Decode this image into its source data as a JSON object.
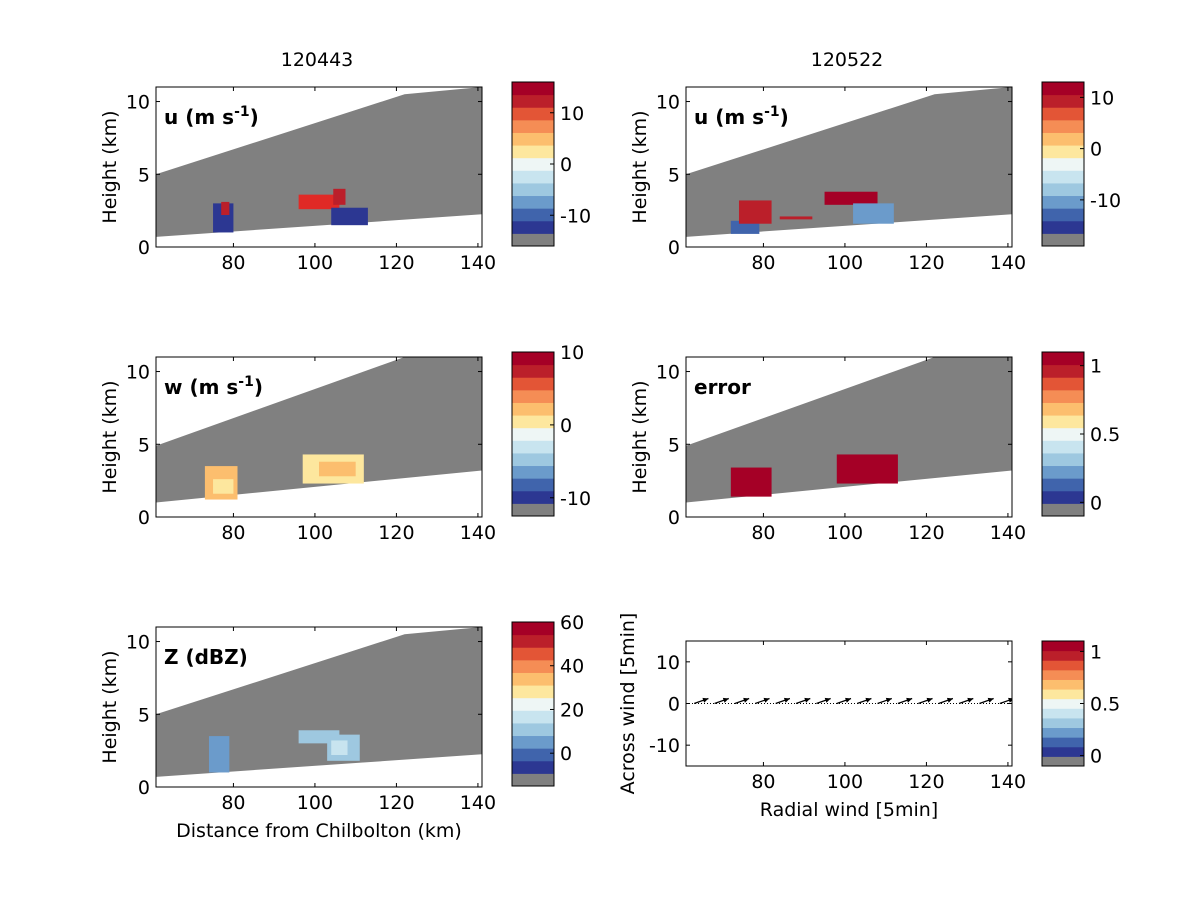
{
  "figure": {
    "column_titles": [
      "120443",
      "120522"
    ]
  },
  "colors": {
    "palette": [
      "#808080",
      "#2c3792",
      "#4064ac",
      "#6b9bcb",
      "#9ec8e0",
      "#c8e4ef",
      "#eef6f5",
      "#fde79e",
      "#fcbe6e",
      "#f58d55",
      "#e35536",
      "#bb1f2a",
      "#a50026"
    ],
    "missing_fill": "#808080",
    "frame": "#000000"
  },
  "chart_data": [
    {
      "type": "heatmap",
      "id": "u-120443",
      "column_title": "120443",
      "ylabel": "Height (km)",
      "xlabel": "",
      "panel_label": {
        "main": "u (m s",
        "sup": "-1",
        "close": ")"
      },
      "xlim": [
        61,
        141
      ],
      "ylim": [
        0,
        11
      ],
      "xticks": [
        80,
        100,
        120,
        140
      ],
      "yticks": [
        0,
        5,
        10
      ],
      "colorbar": {
        "ticks": [
          10,
          0,
          -10
        ],
        "vmin": -16,
        "vmax": 16
      },
      "coverage": {
        "lower": [
          [
            61,
            0.7
          ],
          [
            141,
            2.25
          ]
        ],
        "upper": [
          [
            61,
            5.0
          ],
          [
            122,
            10.5
          ]
        ]
      },
      "features": [
        {
          "x": [
            75,
            80
          ],
          "y": [
            1.0,
            3.0
          ],
          "color": "#2c3792"
        },
        {
          "x": [
            77,
            79
          ],
          "y": [
            2.2,
            3.1
          ],
          "color": "#bb1f2a"
        },
        {
          "x": [
            96,
            106
          ],
          "y": [
            2.6,
            3.6
          ],
          "color": "#e02a26"
        },
        {
          "x": [
            104.5,
            107.5
          ],
          "y": [
            2.9,
            4.0
          ],
          "color": "#bb1f2a"
        },
        {
          "x": [
            104,
            113
          ],
          "y": [
            1.5,
            2.7
          ],
          "color": "#2c3792"
        }
      ]
    },
    {
      "type": "heatmap",
      "id": "u-120522",
      "column_title": "120522",
      "ylabel": "Height (km)",
      "xlabel": "",
      "panel_label": {
        "main": "u (m s",
        "sup": "-1",
        "close": ")"
      },
      "xlim": [
        61,
        141
      ],
      "ylim": [
        0,
        11
      ],
      "xticks": [
        80,
        100,
        120,
        140
      ],
      "yticks": [
        0,
        5,
        10
      ],
      "colorbar": {
        "ticks": [
          10,
          0,
          -10
        ],
        "vmin": -19,
        "vmax": 13
      },
      "coverage": {
        "lower": [
          [
            61,
            0.7
          ],
          [
            141,
            2.25
          ]
        ],
        "upper": [
          [
            61,
            5.0
          ],
          [
            122,
            10.5
          ]
        ]
      },
      "features": [
        {
          "x": [
            72,
            79
          ],
          "y": [
            0.9,
            1.8
          ],
          "color": "#4064ac"
        },
        {
          "x": [
            74,
            82
          ],
          "y": [
            1.6,
            3.2
          ],
          "color": "#bb1f2a"
        },
        {
          "x": [
            95,
            108
          ],
          "y": [
            2.9,
            3.8
          ],
          "color": "#a50026"
        },
        {
          "x": [
            102,
            112
          ],
          "y": [
            1.6,
            3.0
          ],
          "color": "#6b9bcb"
        },
        {
          "x": [
            84,
            92
          ],
          "y": [
            1.9,
            2.1
          ],
          "color": "#bb1f2a"
        }
      ]
    },
    {
      "type": "heatmap",
      "id": "w-120443",
      "column_title": "",
      "ylabel": "Height (km)",
      "xlabel": "",
      "panel_label": {
        "main": "w (m s",
        "sup": "-1",
        "close": ")"
      },
      "xlim": [
        61,
        141
      ],
      "ylim": [
        0,
        11
      ],
      "xticks": [
        80,
        100,
        120,
        140
      ],
      "yticks": [
        0,
        5,
        10
      ],
      "colorbar": {
        "ticks": [
          10,
          0,
          -10
        ],
        "vmin": -12.5,
        "vmax": 10
      },
      "coverage": {
        "lower": [
          [
            61,
            1.0
          ],
          [
            141,
            3.2
          ]
        ],
        "upper": [
          [
            61,
            4.9
          ],
          [
            122,
            11.0
          ]
        ]
      },
      "features": [
        {
          "x": [
            73,
            81
          ],
          "y": [
            1.2,
            3.5
          ],
          "color": "#fcbe6e"
        },
        {
          "x": [
            75,
            80
          ],
          "y": [
            1.6,
            2.6
          ],
          "color": "#fde79e"
        },
        {
          "x": [
            97,
            112
          ],
          "y": [
            2.3,
            4.3
          ],
          "color": "#fde79e"
        },
        {
          "x": [
            101,
            110
          ],
          "y": [
            2.8,
            3.8
          ],
          "color": "#fcbe6e"
        }
      ]
    },
    {
      "type": "heatmap",
      "id": "error-120522",
      "column_title": "",
      "ylabel": "Height (km)",
      "xlabel": "",
      "panel_label": {
        "main": "error",
        "sup": "",
        "close": ""
      },
      "xlim": [
        61,
        141
      ],
      "ylim": [
        0,
        11
      ],
      "xticks": [
        80,
        100,
        120,
        140
      ],
      "yticks": [
        0,
        5,
        10
      ],
      "colorbar": {
        "ticks": [
          1,
          0.5,
          0
        ],
        "vmin": -0.1,
        "vmax": 1.1
      },
      "coverage": {
        "lower": [
          [
            61,
            1.0
          ],
          [
            141,
            3.2
          ]
        ],
        "upper": [
          [
            61,
            4.9
          ],
          [
            122,
            11.0
          ]
        ]
      },
      "features": [
        {
          "x": [
            72,
            82
          ],
          "y": [
            1.4,
            3.4
          ],
          "color": "#a50026"
        },
        {
          "x": [
            98,
            113
          ],
          "y": [
            2.3,
            4.3
          ],
          "color": "#a50026"
        }
      ]
    },
    {
      "type": "heatmap",
      "id": "Z-120443",
      "column_title": "",
      "ylabel": "Height (km)",
      "xlabel": "Distance from Chilbolton (km)",
      "panel_label": {
        "main": "Z (dBZ)",
        "sup": "",
        "close": ""
      },
      "xlim": [
        61,
        141
      ],
      "ylim": [
        0,
        11
      ],
      "xticks": [
        80,
        100,
        120,
        140
      ],
      "yticks": [
        0,
        5,
        10
      ],
      "colorbar": {
        "ticks": [
          60,
          40,
          20,
          0
        ],
        "vmin": -15,
        "vmax": 60
      },
      "coverage": {
        "lower": [
          [
            61,
            0.7
          ],
          [
            141,
            2.25
          ]
        ],
        "upper": [
          [
            61,
            5.0
          ],
          [
            122,
            10.5
          ]
        ]
      },
      "features": [
        {
          "x": [
            74,
            79
          ],
          "y": [
            1.0,
            3.5
          ],
          "color": "#6b9bcb"
        },
        {
          "x": [
            96,
            106
          ],
          "y": [
            3.0,
            3.9
          ],
          "color": "#9ec8e0"
        },
        {
          "x": [
            103,
            111
          ],
          "y": [
            1.8,
            3.6
          ],
          "color": "#9ec8e0"
        },
        {
          "x": [
            104,
            108
          ],
          "y": [
            2.2,
            3.2
          ],
          "color": "#c8e4ef"
        }
      ]
    },
    {
      "type": "quiver",
      "id": "wind-120522",
      "column_title": "",
      "ylabel": "Across wind [5min]",
      "xlabel": "Radial wind [5min]",
      "panel_label": {
        "main": "",
        "sup": "",
        "close": ""
      },
      "xlim": [
        61,
        141
      ],
      "ylim": [
        -15,
        15
      ],
      "xticks": [
        80,
        100,
        120,
        140
      ],
      "yticks": [
        -10,
        0,
        10
      ],
      "colorbar": {
        "ticks": [
          1,
          0.5,
          0
        ],
        "vmin": -0.1,
        "vmax": 1.1
      },
      "arrows": {
        "x": [
          63,
          68,
          73,
          78,
          83,
          88,
          93,
          98,
          103,
          108,
          113,
          118,
          123,
          128,
          133,
          138
        ],
        "y": 0,
        "u": 3.5,
        "v": 1.2
      }
    }
  ]
}
